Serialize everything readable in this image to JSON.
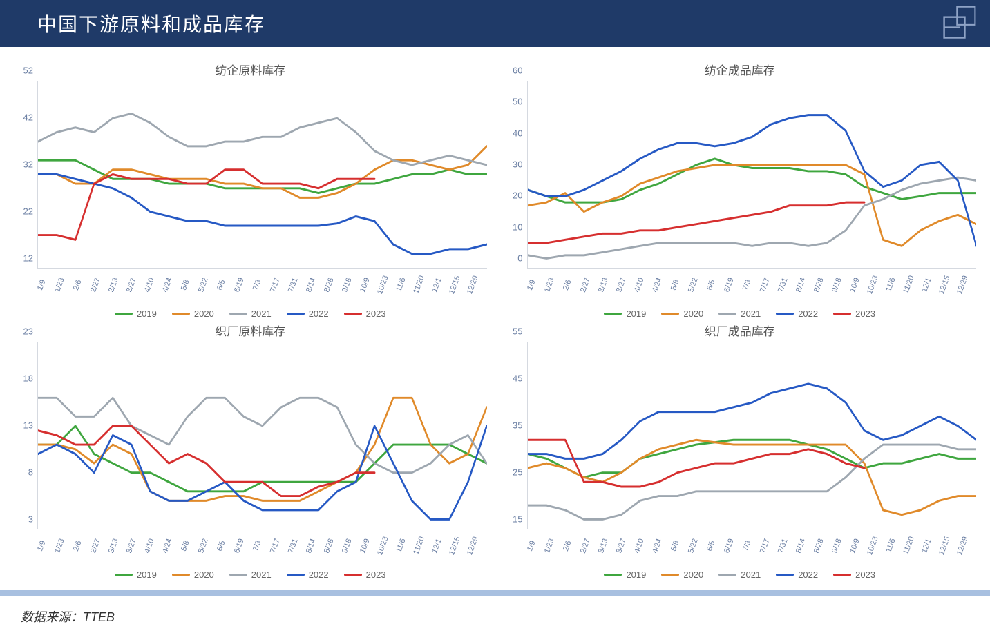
{
  "header": {
    "title": "中国下游原料和成品库存"
  },
  "footer": {
    "source_label": "数据来源：",
    "source_value": "TTEB"
  },
  "common": {
    "x_labels": [
      "1/9",
      "1/23",
      "2/6",
      "2/27",
      "3/13",
      "3/27",
      "4/10",
      "4/24",
      "5/8",
      "5/22",
      "6/5",
      "6/19",
      "7/3",
      "7/17",
      "7/31",
      "8/14",
      "8/28",
      "9/18",
      "10/9",
      "10/23",
      "11/6",
      "11/20",
      "12/1",
      "12/15",
      "12/29"
    ],
    "series_colors": {
      "2019": "#3fa63f",
      "2020": "#e08a2a",
      "2021": "#9ea7b0",
      "2022": "#2659c4",
      "2023": "#d62f2f"
    },
    "axis_color": "#6b7fa3",
    "line_width": 2.4,
    "legend_labels": [
      "2019",
      "2020",
      "2021",
      "2022",
      "2023"
    ]
  },
  "charts": [
    {
      "id": "c1",
      "title": "纺企原料库存",
      "ylim": [
        12,
        52
      ],
      "ytick_step": 10,
      "series": {
        "2019": [
          35,
          35,
          35,
          33,
          31,
          31,
          31,
          30,
          30,
          30,
          29,
          29,
          29,
          29,
          29,
          28,
          29,
          30,
          30,
          31,
          32,
          32,
          33,
          32,
          32
        ],
        "2020": [
          32,
          32,
          30,
          30,
          33,
          33,
          32,
          31,
          31,
          31,
          30,
          30,
          29,
          29,
          27,
          27,
          28,
          30,
          33,
          35,
          35,
          34,
          33,
          34,
          38
        ],
        "2021": [
          39,
          41,
          42,
          41,
          44,
          45,
          43,
          40,
          38,
          38,
          39,
          39,
          40,
          40,
          42,
          43,
          44,
          41,
          37,
          35,
          34,
          35,
          36,
          35,
          34
        ],
        "2022": [
          32,
          32,
          31,
          30,
          29,
          27,
          24,
          23,
          22,
          22,
          21,
          21,
          21,
          21,
          21,
          21,
          21.5,
          23,
          22,
          17,
          15,
          15,
          16,
          16,
          17
        ],
        "2023": [
          19,
          19,
          18,
          30,
          32,
          31,
          31,
          31,
          30,
          30,
          33,
          33,
          30,
          30,
          30,
          29,
          31,
          31,
          31,
          null,
          null,
          null,
          null,
          null,
          null
        ]
      }
    },
    {
      "id": "c2",
      "title": "纺企成品库存",
      "ylim": [
        0,
        60
      ],
      "ytick_step": 10,
      "series": {
        "2019": [
          25,
          23,
          21,
          21,
          21,
          22,
          25,
          27,
          30,
          33,
          35,
          33,
          32,
          32,
          32,
          31,
          31,
          30,
          26,
          24,
          22,
          23,
          24,
          24,
          24
        ],
        "2020": [
          20,
          21,
          24,
          18,
          21,
          23,
          27,
          29,
          31,
          32,
          33,
          33,
          33,
          33,
          33,
          33,
          33,
          33,
          30,
          9,
          7,
          12,
          15,
          17,
          14
        ],
        "2021": [
          4,
          3,
          4,
          4,
          5,
          6,
          7,
          8,
          8,
          8,
          8,
          8,
          7,
          8,
          8,
          7,
          8,
          12,
          20,
          22,
          25,
          27,
          28,
          29,
          28
        ],
        "2022": [
          25,
          23,
          23,
          25,
          28,
          31,
          35,
          38,
          40,
          40,
          39,
          40,
          42,
          46,
          48,
          49,
          49,
          44,
          31,
          26,
          28,
          33,
          34,
          28,
          7
        ],
        "2023": [
          8,
          8,
          9,
          10,
          11,
          11,
          12,
          12,
          13,
          14,
          15,
          16,
          17,
          18,
          20,
          20,
          20,
          21,
          21,
          null,
          null,
          null,
          null,
          null,
          null
        ]
      }
    },
    {
      "id": "c3",
      "title": "织厂原料库存",
      "ylim": [
        3,
        23
      ],
      "ytick_step": 5,
      "series": {
        "2019": [
          12,
          12,
          14,
          11,
          10,
          9,
          9,
          8,
          7,
          7,
          7,
          7,
          8,
          8,
          8,
          8,
          8,
          8,
          10,
          12,
          12,
          12,
          12,
          11,
          10
        ],
        "2020": [
          12,
          12,
          11.5,
          10,
          12,
          11,
          7,
          6,
          6,
          6,
          6.5,
          6.5,
          6,
          6,
          6,
          7,
          8,
          9,
          12,
          17,
          17,
          12,
          10,
          11,
          16
        ],
        "2021": [
          17,
          17,
          15,
          15,
          17,
          14,
          13,
          12,
          15,
          17,
          17,
          15,
          14,
          16,
          17,
          17,
          16,
          12,
          10,
          9,
          9,
          10,
          12,
          13,
          10
        ],
        "2022": [
          11,
          12,
          11,
          9,
          13,
          12,
          7,
          6,
          6,
          7,
          8,
          6,
          5,
          5,
          5,
          5,
          7,
          8,
          14,
          10,
          6,
          4,
          4,
          8,
          14
        ],
        "2023": [
          13.5,
          13,
          12,
          12,
          14,
          14,
          12,
          10,
          11,
          10,
          8,
          8,
          8,
          6.5,
          6.5,
          7.5,
          8,
          9,
          9,
          null,
          null,
          null,
          null,
          null,
          null
        ]
      }
    },
    {
      "id": "c4",
      "title": "织厂成品库存",
      "ylim": [
        15,
        55
      ],
      "ytick_step": 10,
      "series": {
        "2019": [
          31,
          30,
          28,
          26,
          27,
          27,
          30,
          31,
          32,
          33,
          33.5,
          34,
          34,
          34,
          34,
          33,
          32,
          30,
          28,
          29,
          29,
          30,
          31,
          30,
          30
        ],
        "2020": [
          28,
          29,
          28,
          26,
          25,
          27,
          30,
          32,
          33,
          34,
          33.5,
          33,
          33,
          33,
          33,
          33,
          33,
          33,
          29,
          19,
          18,
          19,
          21,
          22,
          22
        ],
        "2021": [
          20,
          20,
          19,
          17,
          17,
          18,
          21,
          22,
          22,
          23,
          23,
          23,
          23,
          23,
          23,
          23,
          23,
          26,
          30,
          33,
          33,
          33,
          33,
          32,
          32
        ],
        "2022": [
          31,
          31,
          30,
          30,
          31,
          34,
          38,
          40,
          40,
          40,
          40,
          41,
          42,
          44,
          45,
          46,
          45,
          42,
          36,
          34,
          35,
          37,
          39,
          37,
          34
        ],
        "2023": [
          34,
          34,
          34,
          25,
          25,
          24,
          24,
          25,
          27,
          28,
          29,
          29,
          30,
          31,
          31,
          32,
          31,
          29,
          28,
          null,
          null,
          null,
          null,
          null,
          null
        ]
      }
    }
  ]
}
